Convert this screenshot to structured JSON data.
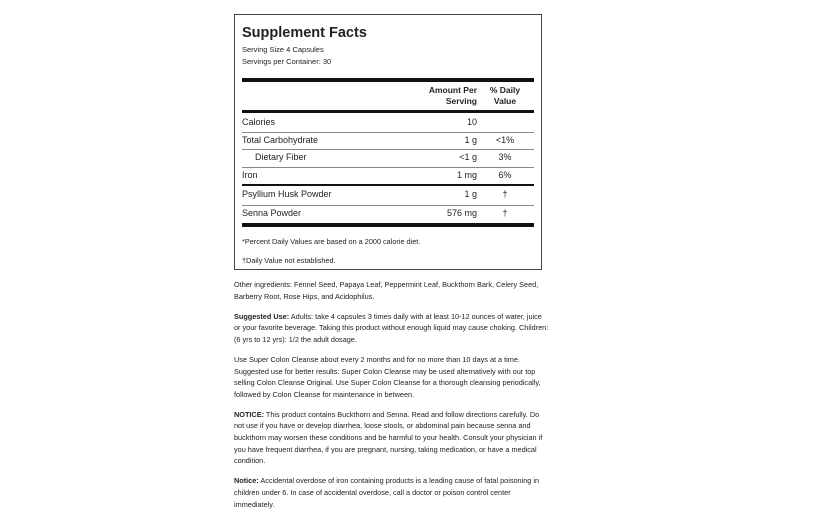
{
  "facts": {
    "title": "Supplement Facts",
    "serving_size": "Serving Size 4 Capsules",
    "servings_per_container": "Servings per Container: 30",
    "header": {
      "amount": [
        "Amount Per",
        "Serving"
      ],
      "daily_value": [
        "% Daily",
        "Value"
      ]
    },
    "nutrients": [
      {
        "name": "Calories",
        "amount": "10"
      },
      {
        "name": "Total Carbohydrate",
        "amount": "1 g",
        "dv": "<1%"
      },
      {
        "name": "Dietary Fiber",
        "amount": "<1 g",
        "dv": "3%",
        "indent": true
      },
      {
        "name": "Iron",
        "amount": "1 mg",
        "dv": "6%"
      }
    ],
    "other": [
      {
        "name": "Psyllium Husk Powder",
        "amount": "1 g",
        "dv": "†"
      },
      {
        "name": "Senna Powder",
        "amount": "576 mg",
        "dv": "†"
      }
    ],
    "footnotes": [
      "*Percent Daily Values are based on a 2000 calorie diet.",
      "†Daily Value not established."
    ]
  },
  "paragraphs": [
    {
      "text": "Other ingredients: Fennel Seed, Papaya Leaf, Peppermint Leaf, Buckthorn Bark, Celery Seed, Barberry Root, Rose Hips, and Acidophilus."
    },
    {
      "label": "Suggested Use:",
      "text": "Adults: take 4 capsules 3 times daily with at least 10-12 ounces of water, juice or your favorite beverage. Taking this product without enough liquid may cause choking. Children: (6 yrs to 12 yrs): 1/2 the adult dosage."
    },
    {
      "text": "Use Super Colon Cleanse about every 2 months and for no more than 10 days at a time. Suggested use for better results: Super Colon Cleanse may be used alternatively with our top selling Colon Cleanse Original. Use Super Colon Cleanse for a thorough cleansing periodically, followed by Colon Cleanse for maintenance in between."
    },
    {
      "label": "NOTICE:",
      "text": "This product contains Buckthorn and Senna. Read and follow directions carefully. Do not use if you have or develop diarrhea, loose stools, or abdominal pain because senna and buckthorn may worsen these conditions and be harmful to your health. Consult your physician if you have frequent diarrhea, if you are pregnant, nursing, taking medication, or have a medical condition."
    },
    {
      "label": "Notice:",
      "text": "Accidental overdose of iron containing products is a leading cause of fatal poisoning in children under 6. In case of accidental overdose, call a doctor or poison control center immediately."
    }
  ]
}
